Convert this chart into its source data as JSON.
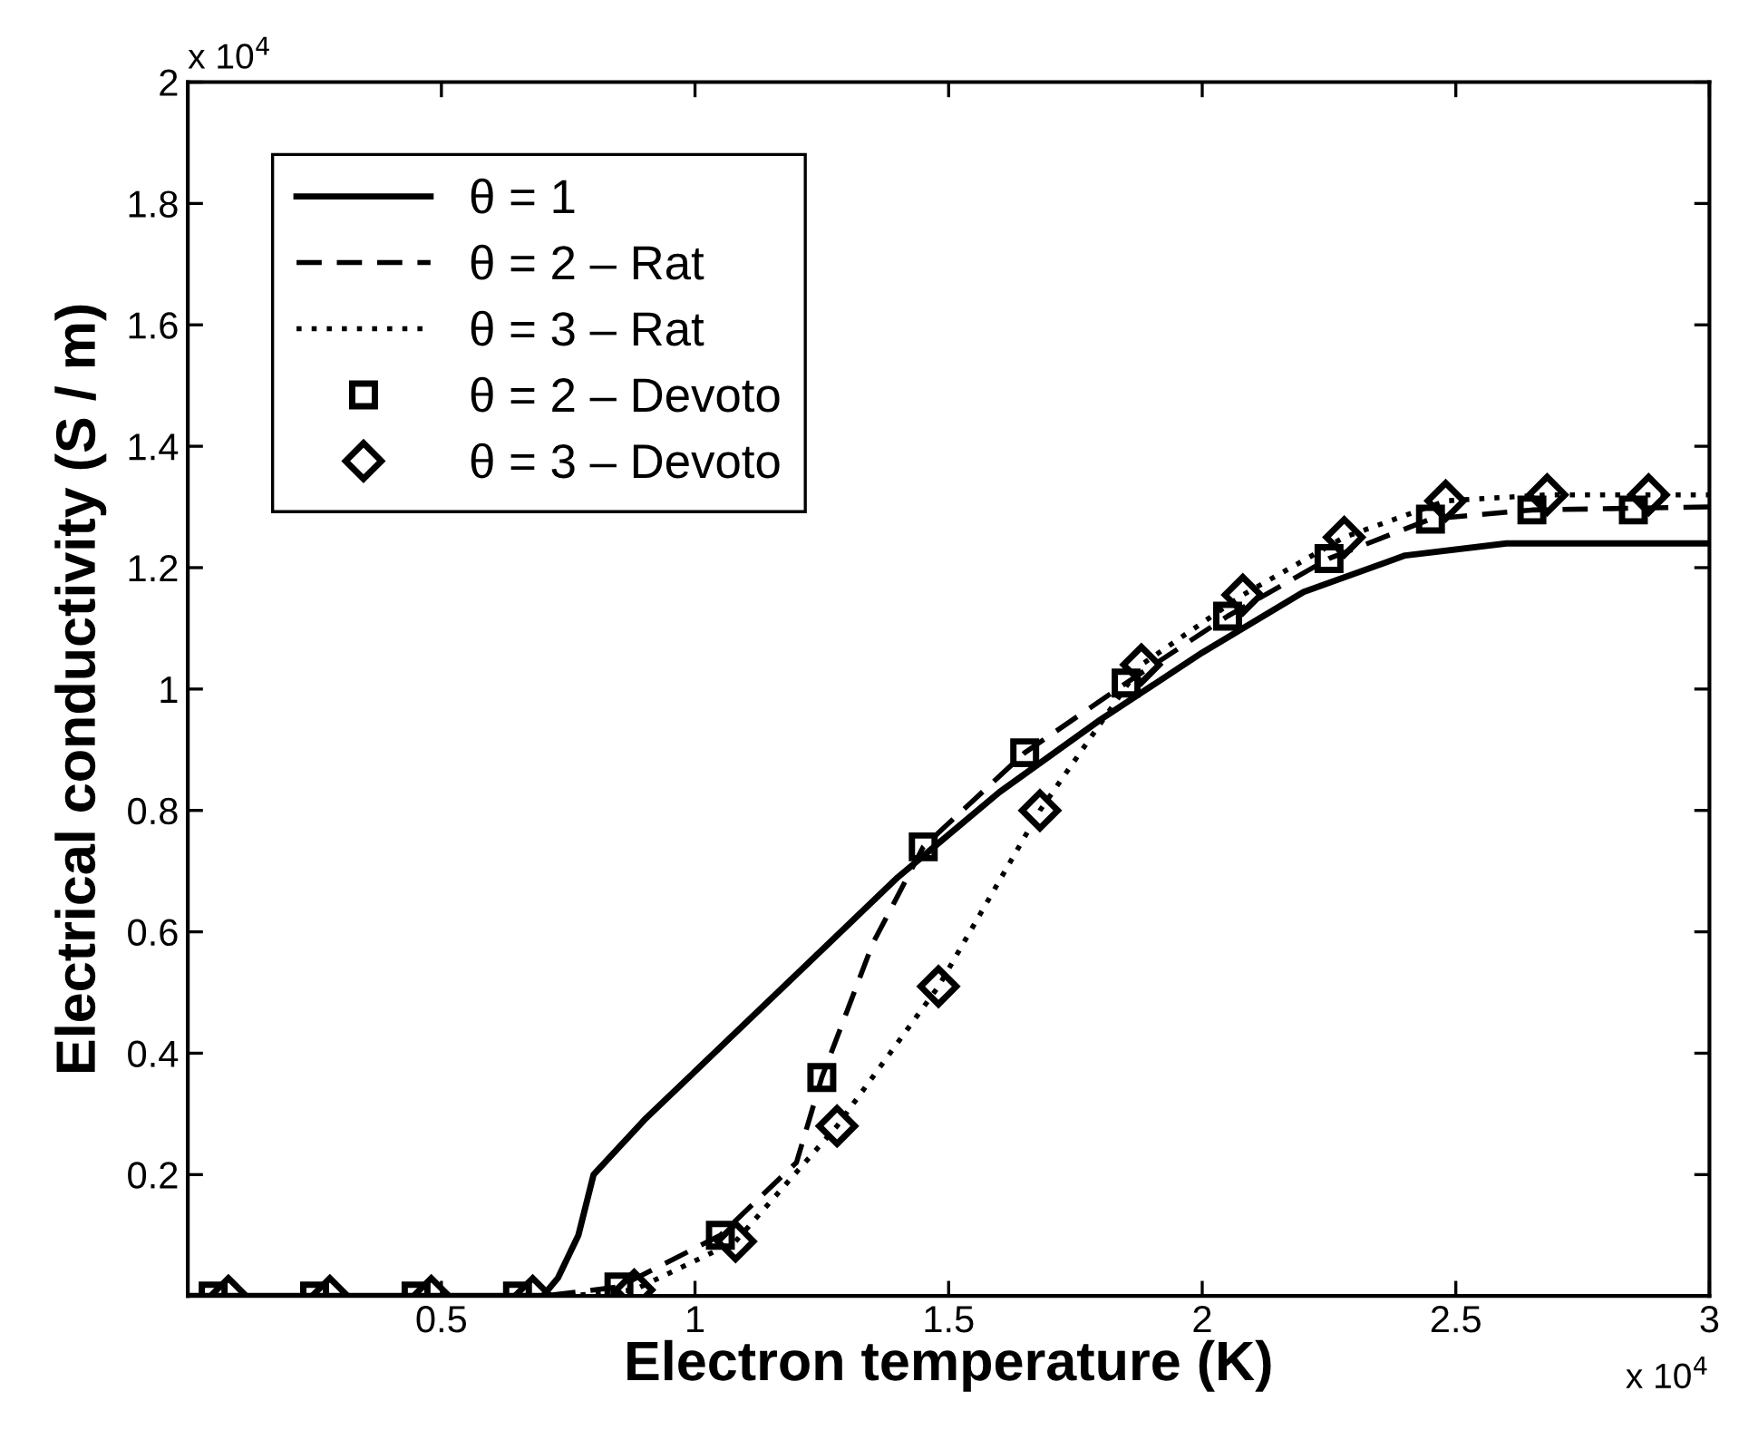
{
  "chart_data": {
    "type": "line",
    "xlabel": "Electron temperature (K)",
    "ylabel": "Electrical conductivity (S / m)",
    "xlim": [
      0,
      3
    ],
    "ylim": [
      0,
      2
    ],
    "xticks": [
      0.5,
      1,
      1.5,
      2,
      2.5,
      3
    ],
    "yticks": [
      0.2,
      0.4,
      0.6,
      0.8,
      1,
      1.2,
      1.4,
      1.6,
      1.8,
      2
    ],
    "grid": false,
    "legend": "top left",
    "annotations": [
      "x 10$^{4}$",
      "x 10$^{4}$"
    ],
    "series": [
      {
        "name": "θ = 1",
        "color": "#000000",
        "line_style": "solid",
        "marker": "none",
        "x": [
          0,
          0.7,
          0.73,
          0.77,
          0.8,
          0.9,
          1.0,
          1.2,
          1.4,
          1.6,
          1.8,
          2.0,
          2.2,
          2.4,
          2.6,
          3.0
        ],
        "values": [
          0,
          0,
          0.03,
          0.1,
          0.2,
          0.29,
          0.37,
          0.53,
          0.69,
          0.83,
          0.95,
          1.06,
          1.16,
          1.22,
          1.24,
          1.24
        ]
      },
      {
        "name": "θ = 2 – Rat",
        "color": "#000000",
        "line_style": "dashed",
        "marker": "none",
        "x": [
          0,
          0.7,
          0.85,
          1.05,
          1.2,
          1.25,
          1.35,
          1.45,
          1.65,
          1.85,
          2.05,
          2.25,
          2.45,
          2.65,
          3.0
        ],
        "values": [
          0,
          0,
          0.015,
          0.1,
          0.22,
          0.36,
          0.58,
          0.74,
          0.895,
          1.01,
          1.12,
          1.215,
          1.28,
          1.295,
          1.3
        ]
      },
      {
        "name": "θ = 3 – Rat",
        "color": "#000000",
        "line_style": "dotted",
        "marker": "none",
        "x": [
          0,
          0.75,
          0.88,
          1.08,
          1.28,
          1.48,
          1.68,
          1.88,
          2.08,
          2.28,
          2.48,
          2.68,
          3.0
        ],
        "values": [
          0,
          0,
          0.01,
          0.09,
          0.28,
          0.51,
          0.8,
          1.04,
          1.155,
          1.25,
          1.31,
          1.32,
          1.32
        ]
      },
      {
        "name": "θ = 2 – Devoto",
        "type": "scatter",
        "color": "#000000",
        "marker": "square",
        "x": [
          0.05,
          0.25,
          0.45,
          0.65,
          0.85,
          1.05,
          1.25,
          1.45,
          1.65,
          1.85,
          2.05,
          2.25,
          2.45,
          2.65,
          2.85
        ],
        "values": [
          0,
          0,
          0,
          0,
          0.015,
          0.1,
          0.36,
          0.74,
          0.895,
          1.01,
          1.12,
          1.215,
          1.28,
          1.295,
          1.295
        ]
      },
      {
        "name": "θ = 3 – Devoto",
        "type": "scatter",
        "color": "#000000",
        "marker": "diamond",
        "x": [
          0.08,
          0.28,
          0.48,
          0.68,
          0.88,
          1.08,
          1.28,
          1.48,
          1.68,
          1.88,
          2.08,
          2.28,
          2.48,
          2.68,
          2.88
        ],
        "values": [
          0,
          0,
          0,
          0,
          0.01,
          0.09,
          0.28,
          0.51,
          0.8,
          1.04,
          1.155,
          1.25,
          1.31,
          1.32,
          1.32
        ]
      }
    ]
  }
}
